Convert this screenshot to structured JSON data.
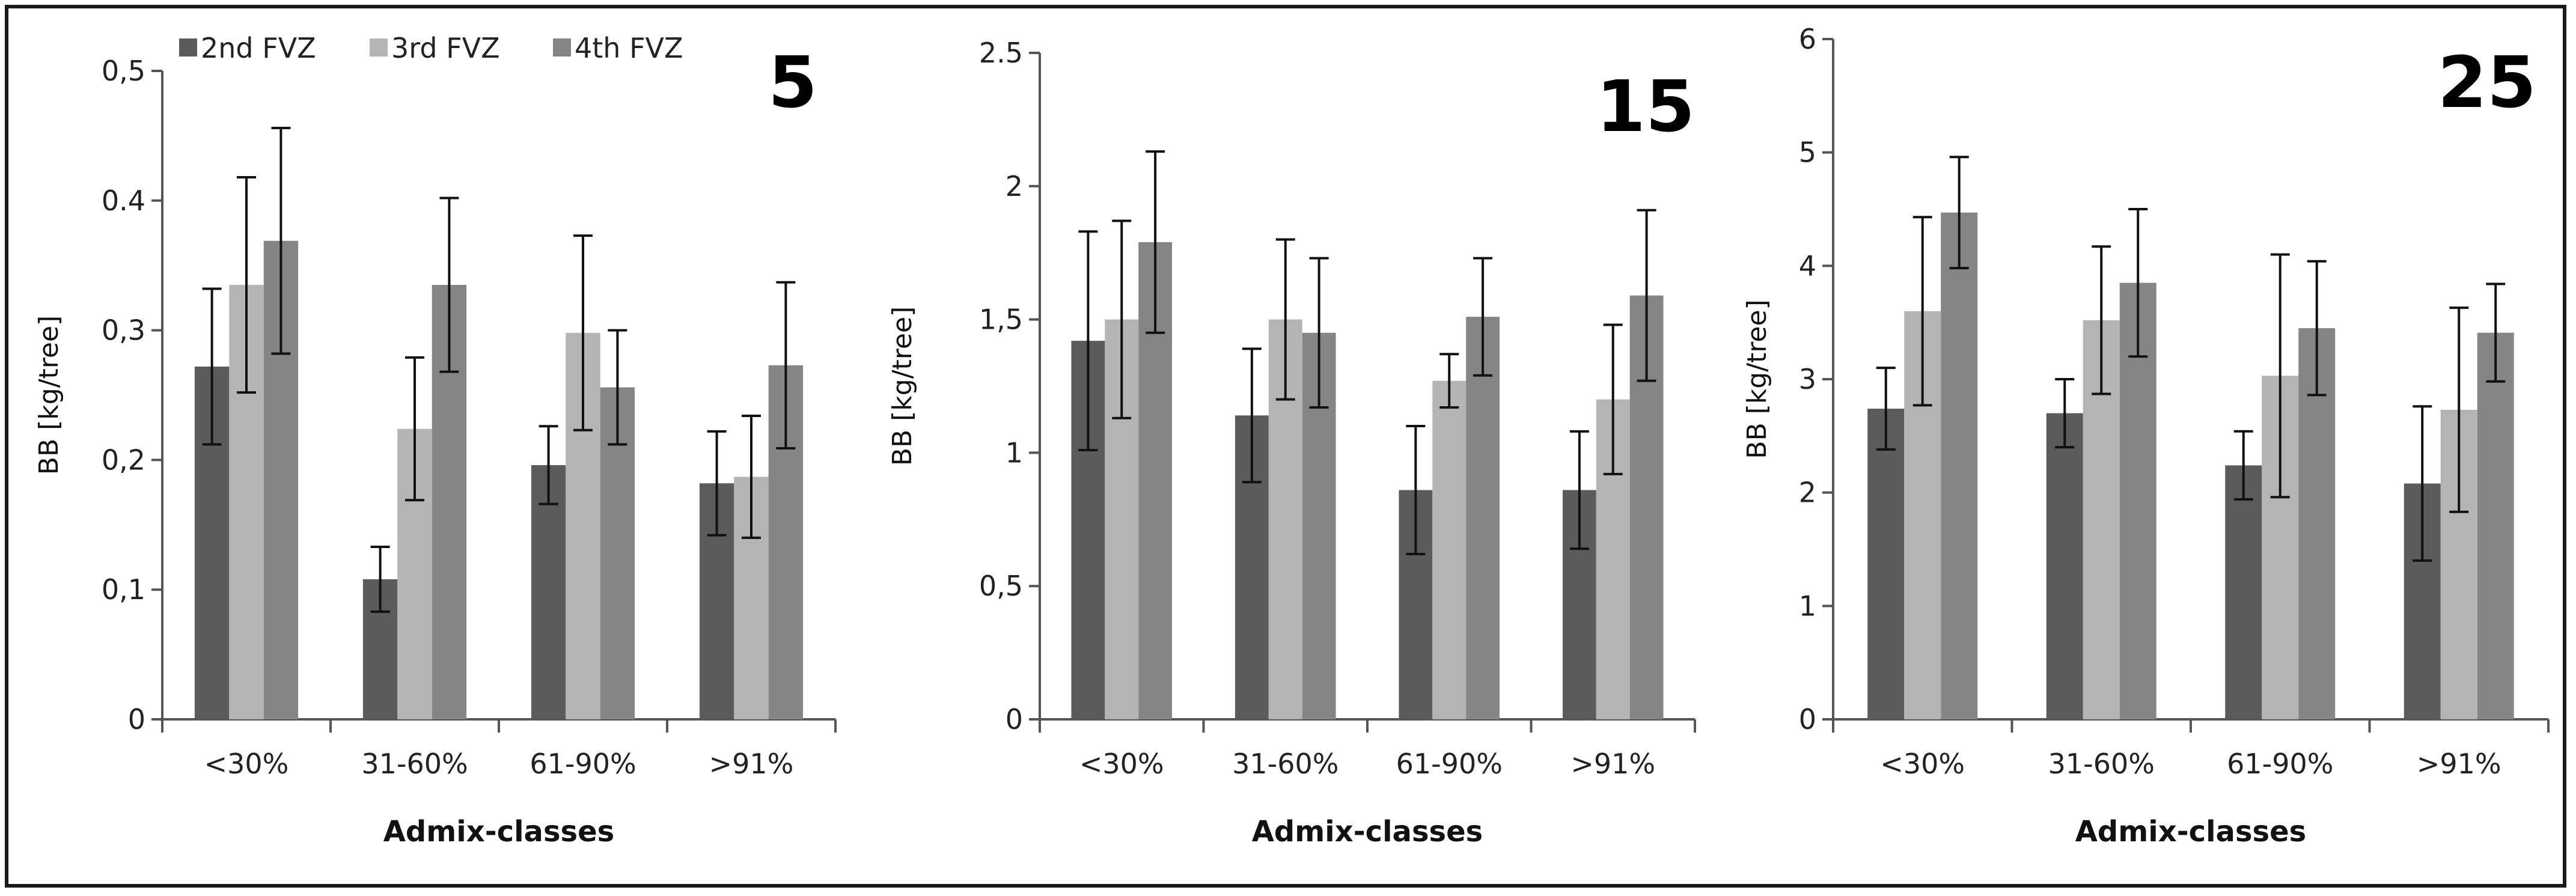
{
  "chart_data": [
    {
      "type": "bar",
      "title": "5",
      "xlabel": "Admix-classes",
      "ylabel": "BB [kg/tree]",
      "ylim": [
        0,
        0.5
      ],
      "yticks": [
        0,
        0.1,
        0.2,
        0.3,
        0.4,
        0.5
      ],
      "ytick_labels": [
        "0",
        "0,1",
        "0,2",
        "0,3",
        "0.4",
        "0,5"
      ],
      "categories": [
        "<30%",
        "31-60%",
        "61-90%",
        ">91%"
      ],
      "series": [
        {
          "name": "2nd FVZ",
          "values": [
            0.272,
            0.108,
            0.196,
            0.182
          ],
          "error": [
            0.06,
            0.025,
            0.03,
            0.04
          ]
        },
        {
          "name": "3rd FVZ",
          "values": [
            0.335,
            0.224,
            0.298,
            0.187
          ],
          "error": [
            0.083,
            0.055,
            0.075,
            0.047
          ]
        },
        {
          "name": "4th FVZ",
          "values": [
            0.369,
            0.335,
            0.256,
            0.273
          ],
          "error": [
            0.087,
            0.067,
            0.044,
            0.064
          ]
        }
      ],
      "legend": "top-left",
      "grid": false
    },
    {
      "type": "bar",
      "title": "15",
      "xlabel": "Admix-classes",
      "ylabel": "BB [kg/tree]",
      "ylim": [
        0,
        2.5
      ],
      "yticks": [
        0,
        0.5,
        1,
        1.5,
        2,
        2.5
      ],
      "ytick_labels": [
        "0",
        "0,5",
        "1",
        "1,5",
        "2",
        "2.5"
      ],
      "categories": [
        "<30%",
        "31-60%",
        "61-90%",
        ">91%"
      ],
      "series": [
        {
          "name": "2nd FVZ",
          "values": [
            1.42,
            1.14,
            0.86,
            0.86
          ],
          "error": [
            0.41,
            0.25,
            0.24,
            0.22
          ]
        },
        {
          "name": "3rd FVZ",
          "values": [
            1.5,
            1.5,
            1.27,
            1.2
          ],
          "error": [
            0.37,
            0.3,
            0.1,
            0.28
          ]
        },
        {
          "name": "4th FVZ",
          "values": [
            1.79,
            1.45,
            1.51,
            1.59
          ],
          "error": [
            0.34,
            0.28,
            0.22,
            0.32
          ]
        }
      ],
      "grid": false
    },
    {
      "type": "bar",
      "title": "25",
      "xlabel": "Admix-classes",
      "ylabel": "BB [kg/tree]",
      "ylim": [
        0,
        6
      ],
      "yticks": [
        0,
        1,
        2,
        3,
        4,
        5,
        6
      ],
      "ytick_labels": [
        "0",
        "1",
        "2",
        "3",
        "4",
        "5",
        "6"
      ],
      "categories": [
        "<30%",
        "31-60%",
        "61-90%",
        ">91%"
      ],
      "series": [
        {
          "name": "2nd FVZ",
          "values": [
            2.74,
            2.7,
            2.24,
            2.08
          ],
          "error": [
            0.36,
            0.3,
            0.3,
            0.68
          ]
        },
        {
          "name": "3rd FVZ",
          "values": [
            3.6,
            3.52,
            3.03,
            2.73
          ],
          "error": [
            0.83,
            0.65,
            1.07,
            0.9
          ]
        },
        {
          "name": "4th FVZ",
          "values": [
            4.47,
            3.85,
            3.45,
            3.41
          ],
          "error": [
            0.49,
            0.65,
            0.59,
            0.43
          ]
        }
      ],
      "grid": false
    }
  ],
  "colors": {
    "series": [
      "#5b5b5b",
      "#b4b4b4",
      "#858585"
    ],
    "axis": "#555555",
    "error": "#111111"
  }
}
